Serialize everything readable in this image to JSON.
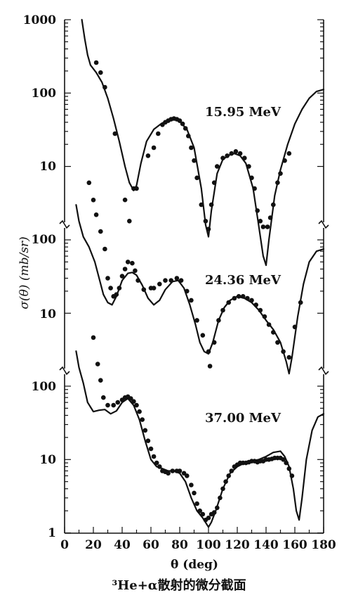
{
  "chart_data": {
    "type": "scatter",
    "title": "³He+α散射的微分截面",
    "xlabel": "θ (deg)",
    "ylabel": "σ(θ) (mb/sr)",
    "xlim": [
      0,
      180
    ],
    "x_ticks": [
      "0",
      "20",
      "40",
      "60",
      "80",
      "100",
      "120",
      "140",
      "160",
      "180"
    ],
    "y_scale": "log",
    "y_tick_labels": {
      "panel1": [
        "1000",
        "100",
        "10"
      ],
      "panel2": [
        "100",
        "10"
      ],
      "panel3": [
        "100",
        "10",
        "1"
      ]
    },
    "series": [
      {
        "name": "15.95 MeV",
        "panel": 1,
        "points": [
          [
            22,
            260
          ],
          [
            25,
            190
          ],
          [
            28,
            120
          ],
          [
            35,
            28
          ],
          [
            42,
            3.5
          ],
          [
            45,
            1.8
          ],
          [
            48,
            5
          ],
          [
            50,
            5
          ],
          [
            58,
            14
          ],
          [
            62,
            18
          ],
          [
            65,
            28
          ],
          [
            68,
            37
          ],
          [
            70,
            40
          ],
          [
            72,
            42
          ],
          [
            74,
            44
          ],
          [
            76,
            45
          ],
          [
            78,
            44
          ],
          [
            80,
            42
          ],
          [
            82,
            38
          ],
          [
            84,
            33
          ],
          [
            86,
            26
          ],
          [
            88,
            18
          ],
          [
            90,
            12
          ],
          [
            92,
            7
          ],
          [
            95,
            3
          ],
          [
            98,
            1.8
          ],
          [
            100,
            1.4
          ],
          [
            102,
            3
          ],
          [
            104,
            6
          ],
          [
            106,
            10
          ],
          [
            110,
            13
          ],
          [
            113,
            14
          ],
          [
            116,
            15
          ],
          [
            119,
            16
          ],
          [
            122,
            15
          ],
          [
            125,
            13
          ],
          [
            128,
            10
          ],
          [
            130,
            7
          ],
          [
            132,
            5
          ],
          [
            134,
            2.5
          ],
          [
            136,
            1.8
          ],
          [
            138,
            1.5
          ],
          [
            141,
            1.5
          ],
          [
            143,
            2
          ],
          [
            145,
            3
          ],
          [
            148,
            6
          ],
          [
            150,
            8
          ],
          [
            153,
            12
          ],
          [
            156,
            15
          ]
        ],
        "curve": [
          [
            12,
            1000
          ],
          [
            14,
            550
          ],
          [
            16,
            330
          ],
          [
            18,
            240
          ],
          [
            22,
            190
          ],
          [
            26,
            140
          ],
          [
            30,
            85
          ],
          [
            34,
            45
          ],
          [
            38,
            22
          ],
          [
            42,
            10
          ],
          [
            45,
            6
          ],
          [
            48,
            4.7
          ],
          [
            50,
            5.5
          ],
          [
            53,
            11
          ],
          [
            57,
            22
          ],
          [
            62,
            32
          ],
          [
            67,
            38
          ],
          [
            72,
            43
          ],
          [
            76,
            44
          ],
          [
            80,
            41
          ],
          [
            85,
            32
          ],
          [
            90,
            18
          ],
          [
            95,
            5
          ],
          [
            98,
            1.6
          ],
          [
            100,
            1.1
          ],
          [
            102,
            2.5
          ],
          [
            106,
            8
          ],
          [
            110,
            12.5
          ],
          [
            115,
            14.5
          ],
          [
            118,
            15
          ],
          [
            122,
            14
          ],
          [
            126,
            11
          ],
          [
            131,
            5
          ],
          [
            135,
            1.5
          ],
          [
            138,
            0.6
          ],
          [
            140,
            0.45
          ],
          [
            142,
            1
          ],
          [
            146,
            4
          ],
          [
            150,
            9
          ],
          [
            155,
            20
          ],
          [
            160,
            38
          ],
          [
            165,
            60
          ],
          [
            170,
            85
          ],
          [
            175,
            105
          ],
          [
            180,
            112
          ]
        ]
      },
      {
        "name": "24.36 MeV",
        "panel": 2,
        "points": [
          [
            17,
            600
          ],
          [
            20,
            350
          ],
          [
            22,
            220
          ],
          [
            25,
            130
          ],
          [
            28,
            75
          ],
          [
            30,
            30
          ],
          [
            32,
            22
          ],
          [
            34,
            17
          ],
          [
            36,
            18
          ],
          [
            38,
            22
          ],
          [
            40,
            32
          ],
          [
            42,
            40
          ],
          [
            44,
            50
          ],
          [
            47,
            48
          ],
          [
            49,
            38
          ],
          [
            51,
            28
          ],
          [
            55,
            21
          ],
          [
            60,
            22
          ],
          [
            62,
            22
          ],
          [
            66,
            25
          ],
          [
            70,
            28
          ],
          [
            74,
            28
          ],
          [
            78,
            30
          ],
          [
            81,
            28
          ],
          [
            85,
            20
          ],
          [
            88,
            15
          ],
          [
            92,
            8
          ],
          [
            96,
            5
          ],
          [
            100,
            3
          ],
          [
            101,
            1.9
          ],
          [
            104,
            4
          ],
          [
            107,
            8
          ],
          [
            110,
            11
          ],
          [
            114,
            14
          ],
          [
            118,
            16
          ],
          [
            121,
            17
          ],
          [
            124,
            17
          ],
          [
            127,
            16
          ],
          [
            130,
            15
          ],
          [
            133,
            13
          ],
          [
            136,
            11
          ],
          [
            139,
            9
          ],
          [
            142,
            7
          ],
          [
            145,
            5.5
          ],
          [
            148,
            4
          ],
          [
            152,
            3
          ],
          [
            156,
            2.5
          ],
          [
            160,
            6.5
          ],
          [
            164,
            14
          ]
        ],
        "curve": [
          [
            8,
            300
          ],
          [
            10,
            180
          ],
          [
            13,
            110
          ],
          [
            17,
            80
          ],
          [
            21,
            50
          ],
          [
            24,
            30
          ],
          [
            27,
            18
          ],
          [
            30,
            14
          ],
          [
            33,
            13
          ],
          [
            36,
            17
          ],
          [
            40,
            28
          ],
          [
            44,
            35
          ],
          [
            47,
            36
          ],
          [
            50,
            33
          ],
          [
            54,
            24
          ],
          [
            58,
            16
          ],
          [
            62,
            13
          ],
          [
            66,
            15
          ],
          [
            70,
            21
          ],
          [
            75,
            27
          ],
          [
            79,
            28
          ],
          [
            83,
            22
          ],
          [
            87,
            13
          ],
          [
            91,
            7
          ],
          [
            94,
            4
          ],
          [
            97,
            3
          ],
          [
            100,
            2.8
          ],
          [
            103,
            4
          ],
          [
            107,
            8
          ],
          [
            111,
            12
          ],
          [
            115,
            15
          ],
          [
            120,
            17
          ],
          [
            125,
            16
          ],
          [
            130,
            14
          ],
          [
            135,
            11
          ],
          [
            140,
            8
          ],
          [
            145,
            6
          ],
          [
            150,
            4
          ],
          [
            154,
            2.2
          ],
          [
            156,
            1.5
          ],
          [
            158,
            2.5
          ],
          [
            162,
            9
          ],
          [
            166,
            25
          ],
          [
            170,
            50
          ],
          [
            175,
            70
          ],
          [
            180,
            75
          ]
        ]
      },
      {
        "name": "37.00 MeV",
        "panel": 3,
        "points": [
          [
            20,
            460
          ],
          [
            23,
            200
          ],
          [
            25,
            120
          ],
          [
            27,
            70
          ],
          [
            30,
            55
          ],
          [
            34,
            55
          ],
          [
            37,
            60
          ],
          [
            40,
            65
          ],
          [
            42,
            70
          ],
          [
            44,
            72
          ],
          [
            46,
            68
          ],
          [
            48,
            62
          ],
          [
            50,
            55
          ],
          [
            52,
            45
          ],
          [
            54,
            35
          ],
          [
            56,
            25
          ],
          [
            58,
            18
          ],
          [
            60,
            14
          ],
          [
            62,
            11
          ],
          [
            64,
            9
          ],
          [
            66,
            8
          ],
          [
            68,
            7
          ],
          [
            70,
            6.8
          ],
          [
            72,
            6.5
          ],
          [
            75,
            7
          ],
          [
            78,
            7
          ],
          [
            80,
            7
          ],
          [
            83,
            6.5
          ],
          [
            85,
            6
          ],
          [
            88,
            4.5
          ],
          [
            90,
            3.5
          ],
          [
            92,
            2.5
          ],
          [
            94,
            2
          ],
          [
            96,
            1.8
          ],
          [
            98,
            1.5
          ],
          [
            100,
            1.6
          ],
          [
            102,
            1.8
          ],
          [
            104,
            1.9
          ],
          [
            106,
            2.2
          ],
          [
            108,
            3
          ],
          [
            110,
            4
          ],
          [
            112,
            5
          ],
          [
            114,
            6
          ],
          [
            116,
            7
          ],
          [
            118,
            8
          ],
          [
            120,
            8.5
          ],
          [
            122,
            9
          ],
          [
            124,
            9
          ],
          [
            126,
            9
          ],
          [
            128,
            9.2
          ],
          [
            130,
            9.5
          ],
          [
            132,
            9.5
          ],
          [
            134,
            9.2
          ],
          [
            136,
            9.5
          ],
          [
            138,
            9.5
          ],
          [
            140,
            10
          ],
          [
            142,
            10
          ],
          [
            144,
            10.2
          ],
          [
            146,
            10.5
          ],
          [
            148,
            10.5
          ],
          [
            150,
            10.5
          ],
          [
            152,
            10
          ],
          [
            154,
            9
          ],
          [
            156,
            7.5
          ],
          [
            158,
            6
          ]
        ],
        "curve": [
          [
            8,
            300
          ],
          [
            10,
            180
          ],
          [
            13,
            110
          ],
          [
            16,
            60
          ],
          [
            20,
            45
          ],
          [
            24,
            47
          ],
          [
            28,
            48
          ],
          [
            32,
            42
          ],
          [
            36,
            46
          ],
          [
            40,
            60
          ],
          [
            44,
            68
          ],
          [
            48,
            55
          ],
          [
            52,
            35
          ],
          [
            56,
            18
          ],
          [
            60,
            10
          ],
          [
            64,
            8
          ],
          [
            68,
            7.5
          ],
          [
            72,
            7
          ],
          [
            76,
            7
          ],
          [
            80,
            6.5
          ],
          [
            84,
            5
          ],
          [
            88,
            3
          ],
          [
            92,
            2
          ],
          [
            96,
            1.6
          ],
          [
            100,
            1.2
          ],
          [
            102,
            1.4
          ],
          [
            105,
            2
          ],
          [
            110,
            4
          ],
          [
            115,
            6.5
          ],
          [
            120,
            8
          ],
          [
            125,
            9
          ],
          [
            130,
            9.5
          ],
          [
            135,
            10
          ],
          [
            140,
            11
          ],
          [
            145,
            12.5
          ],
          [
            150,
            13
          ],
          [
            153,
            11
          ],
          [
            156,
            8
          ],
          [
            159,
            4
          ],
          [
            161,
            2
          ],
          [
            163,
            1.5
          ],
          [
            165,
            3
          ],
          [
            168,
            10
          ],
          [
            172,
            25
          ],
          [
            176,
            38
          ],
          [
            180,
            42
          ]
        ]
      }
    ]
  }
}
